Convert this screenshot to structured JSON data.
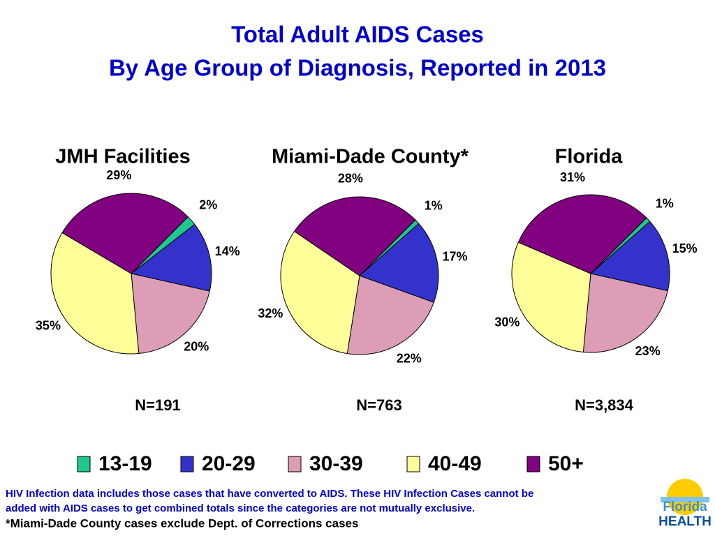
{
  "title": [
    "Total Adult AIDS Cases",
    "By Age Group of Diagnosis, Reported in 2013"
  ],
  "legend": {
    "categories": [
      "13-19",
      "20-29",
      "30-39",
      "40-49",
      "50+"
    ],
    "colors": [
      "#1fc98e",
      "#3333cc",
      "#dd9db6",
      "#ffff99",
      "#800080"
    ]
  },
  "chart_data": [
    {
      "type": "pie",
      "title": "JMH Facilities",
      "annotation": "N=191",
      "values": [
        2,
        14,
        20,
        35,
        29
      ],
      "value_labels": [
        "2%",
        "14%",
        "20%",
        "35%",
        "29%"
      ]
    },
    {
      "type": "pie",
      "title": "Miami-Dade County*",
      "annotation": "N=763",
      "values": [
        1,
        17,
        22,
        32,
        28
      ],
      "value_labels": [
        "1%",
        "17%",
        "22%",
        "32%",
        "28%"
      ]
    },
    {
      "type": "pie",
      "title": "Florida",
      "annotation": "N=3,834",
      "values": [
        1,
        15,
        23,
        30,
        31
      ],
      "value_labels": [
        "1%",
        "15%",
        "23%",
        "30%",
        "31%"
      ]
    }
  ],
  "footnotes": [
    "HIV Infection data includes those cases that have converted to AIDS.  These HIV Infection Cases cannot be",
    "added with AIDS cases to get combined totals since the categories are not mutually exclusive.",
    "*Miami-Dade County cases exclude Dept. of Corrections cases"
  ],
  "logo": [
    "Florida",
    "HEALTH"
  ]
}
